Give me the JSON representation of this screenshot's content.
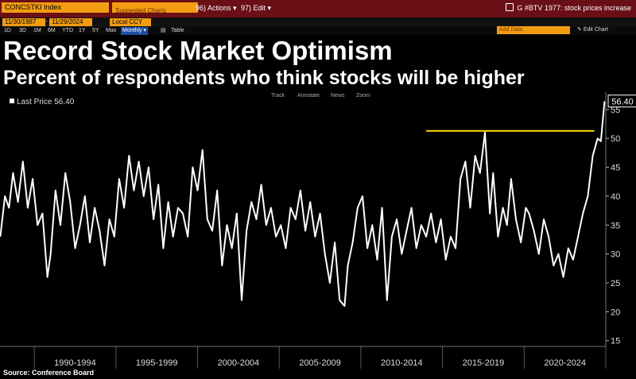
{
  "topbar": {
    "ticker": "CONCSTKI Index",
    "ticker_field_placeholder": "Suggested Charts",
    "actions_label": "96) Actions ▾",
    "edit_label": "97) Edit ▾",
    "news_text": "G #BTV 1977: stock prices increase"
  },
  "datebar": {
    "start_date": "11/30/1987",
    "end_date": "11/29/2024",
    "currency": "Local CCY"
  },
  "rangebar": {
    "ranges": [
      "1D",
      "3D",
      "1M",
      "6M",
      "YTD",
      "1Y",
      "5Y",
      "Max"
    ],
    "frequency": "Monthly ▾",
    "table_label": "Table",
    "add_data": "Add Data",
    "edit_chart": "Edit Chart"
  },
  "title": "Record Stock Market Optimism",
  "subtitle": "Percent of respondents who think stocks will be higher",
  "source": "Source: Conference Board",
  "colors": {
    "line": "#ffffff",
    "threshold": "#ffe000",
    "background": "#000000",
    "grid": "#3a3a3a",
    "tag_border": "#ffffff"
  },
  "chart_data": {
    "type": "line",
    "legend": "Last Price 56.40",
    "toolbar": [
      "Track",
      "Annotate",
      "News",
      "Zoom"
    ],
    "last_value": 56.4,
    "last_value_label": "56.40",
    "threshold": {
      "value": 51.3,
      "x_start": 2014.0,
      "x_end": 2024.3
    },
    "ylim": [
      14,
      58
    ],
    "yticks": [
      15,
      20,
      25,
      30,
      35,
      40,
      45,
      50,
      55
    ],
    "ytick_labels": [
      "15",
      "20",
      "25",
      "30",
      "35",
      "40",
      "45",
      "50",
      "55"
    ],
    "xlim": [
      1987.9,
      2025.0
    ],
    "x_boundaries": [
      1990.0,
      1995.0,
      2000.0,
      2005.0,
      2010.0,
      2015.0,
      2020.0,
      2025.0
    ],
    "xtick_labels": [
      "1990-1994",
      "1995-1999",
      "2000-2004",
      "2005-2009",
      "2010-2014",
      "2015-2019",
      "2020-2024"
    ],
    "series": [
      {
        "name": "CONCSTKI Index",
        "x": [
          1987.92,
          1988.2,
          1988.45,
          1988.7,
          1989.0,
          1989.3,
          1989.6,
          1989.9,
          1990.2,
          1990.5,
          1990.8,
          1991.0,
          1991.3,
          1991.6,
          1991.9,
          1992.2,
          1992.5,
          1992.8,
          1993.1,
          1993.4,
          1993.7,
          1994.0,
          1994.3,
          1994.6,
          1994.9,
          1995.2,
          1995.5,
          1995.8,
          1996.1,
          1996.4,
          1996.7,
          1997.0,
          1997.3,
          1997.6,
          1997.9,
          1998.2,
          1998.5,
          1998.8,
          1999.1,
          1999.4,
          1999.7,
          2000.0,
          2000.3,
          2000.6,
          2000.9,
          2001.2,
          2001.5,
          2001.8,
          2002.1,
          2002.4,
          2002.7,
          2003.0,
          2003.3,
          2003.6,
          2003.9,
          2004.2,
          2004.5,
          2004.8,
          2005.1,
          2005.4,
          2005.7,
          2006.0,
          2006.3,
          2006.6,
          2006.9,
          2007.2,
          2007.5,
          2007.8,
          2008.1,
          2008.4,
          2008.7,
          2009.0,
          2009.2,
          2009.5,
          2009.8,
          2010.1,
          2010.4,
          2010.7,
          2011.0,
          2011.3,
          2011.6,
          2011.9,
          2012.2,
          2012.5,
          2012.8,
          2013.1,
          2013.4,
          2013.7,
          2014.0,
          2014.3,
          2014.6,
          2014.9,
          2015.2,
          2015.5,
          2015.8,
          2016.1,
          2016.4,
          2016.7,
          2017.0,
          2017.3,
          2017.6,
          2017.9,
          2018.1,
          2018.4,
          2018.7,
          2018.95,
          2019.2,
          2019.5,
          2019.8,
          2020.1,
          2020.3,
          2020.6,
          2020.9,
          2021.2,
          2021.5,
          2021.8,
          2022.1,
          2022.4,
          2022.7,
          2023.0,
          2023.3,
          2023.6,
          2023.9,
          2024.2,
          2024.5,
          2024.7,
          2024.92
        ],
        "y": [
          33,
          40,
          38,
          44,
          39,
          46,
          38,
          43,
          35,
          37,
          26,
          30,
          41,
          35,
          44,
          39,
          31,
          35,
          40,
          32,
          38,
          34,
          28,
          36,
          33,
          43,
          38,
          47,
          41,
          46,
          40,
          45,
          36,
          42,
          31,
          39,
          33,
          38,
          37,
          33,
          45,
          41,
          48,
          36,
          34,
          41,
          28,
          35,
          31,
          37,
          22,
          34,
          39,
          36,
          42,
          35,
          38,
          33,
          35,
          31,
          38,
          36,
          41,
          34,
          39,
          33,
          37,
          30,
          25,
          32,
          22,
          21,
          28,
          32,
          38,
          40,
          31,
          35,
          29,
          38,
          22,
          33,
          36,
          30,
          34,
          38,
          31,
          35,
          33,
          37,
          32,
          36,
          29,
          33,
          31,
          43,
          46,
          38,
          47,
          44,
          51,
          37,
          44,
          33,
          38,
          35,
          43,
          36,
          32,
          38,
          37,
          34,
          30,
          36,
          33,
          28,
          30,
          26,
          31,
          29,
          33,
          37,
          40,
          47,
          50,
          49.5,
          56.4
        ]
      }
    ]
  }
}
